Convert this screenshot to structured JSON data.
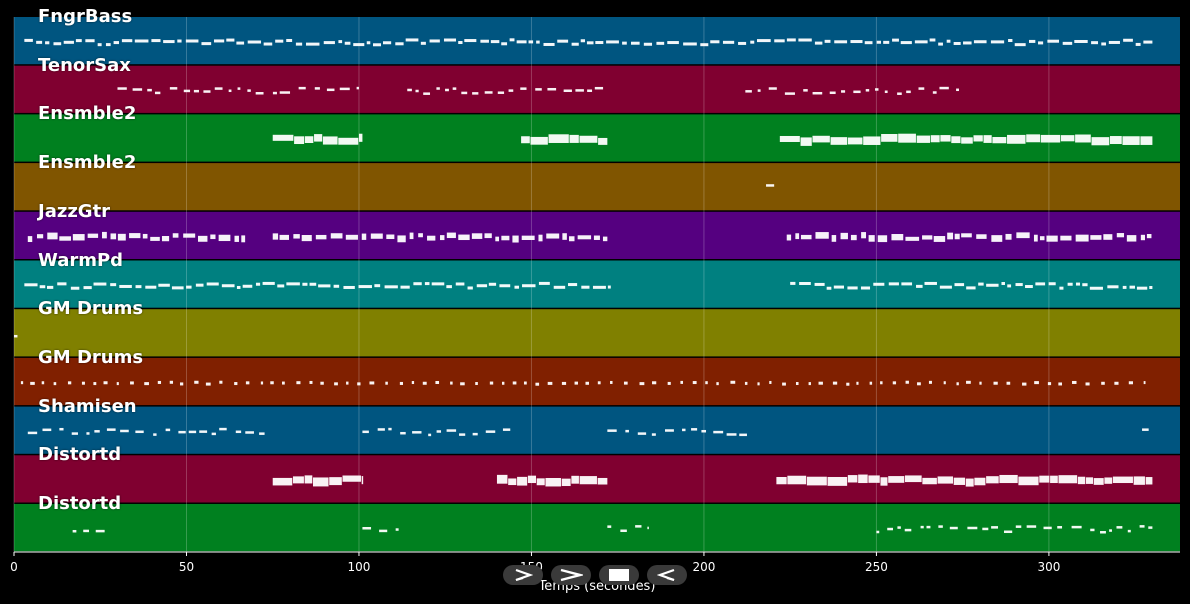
{
  "chart_data": {
    "type": "piano-roll",
    "xlabel": "Temps (secondes)",
    "xlim": [
      0,
      338
    ],
    "x_ticks": [
      0,
      50,
      100,
      150,
      200,
      250,
      300
    ],
    "tracks": [
      {
        "name": "FngrBass",
        "color": "#005580",
        "segments": [
          [
            3,
            330
          ]
        ],
        "style": "dense"
      },
      {
        "name": "TenorSax",
        "color": "#800030",
        "segments": [
          [
            30,
            100
          ],
          [
            114,
            172
          ],
          [
            212,
            275
          ]
        ],
        "style": "sparse"
      },
      {
        "name": "Ensmble2",
        "color": "#00801f",
        "segments": [
          [
            75,
            101
          ],
          [
            147,
            172
          ],
          [
            222,
            330
          ]
        ],
        "style": "block"
      },
      {
        "name": "Ensmble2",
        "color": "#805500",
        "segments": [
          [
            218,
            223
          ]
        ],
        "style": "sparse"
      },
      {
        "name": "JazzGtr",
        "color": "#550080",
        "segments": [
          [
            4,
            67
          ],
          [
            75,
            172
          ],
          [
            224,
            330
          ]
        ],
        "style": "mixed"
      },
      {
        "name": "WarmPd",
        "color": "#008080",
        "segments": [
          [
            3,
            173
          ],
          [
            225,
            330
          ]
        ],
        "style": "dense"
      },
      {
        "name": "GM Drums",
        "color": "#808000",
        "segments": [
          [
            0,
            1
          ]
        ],
        "style": "sparse"
      },
      {
        "name": "GM Drums",
        "color": "#802000",
        "segments": [
          [
            2,
            328
          ]
        ],
        "style": "dots"
      },
      {
        "name": "Shamisen",
        "color": "#005580",
        "segments": [
          [
            4,
            74
          ],
          [
            101,
            145
          ],
          [
            172,
            213
          ],
          [
            327,
            330
          ]
        ],
        "style": "sparse"
      },
      {
        "name": "Distortd",
        "color": "#800030",
        "segments": [
          [
            75,
            101
          ],
          [
            140,
            172
          ],
          [
            221,
            330
          ]
        ],
        "style": "block"
      },
      {
        "name": "Distortd",
        "color": "#00801f",
        "segments": [
          [
            17,
            28
          ],
          [
            101,
            113
          ],
          [
            172,
            184
          ],
          [
            250,
            330
          ]
        ],
        "style": "sparse"
      }
    ]
  },
  "controls": [
    {
      "name": "play-from-start-button",
      "icon": "play-outline-icon"
    },
    {
      "name": "play-button",
      "icon": "chevron-right-icon"
    },
    {
      "name": "stop-button",
      "icon": "stop-icon"
    },
    {
      "name": "rewind-button",
      "icon": "play-left-outline-icon"
    }
  ]
}
